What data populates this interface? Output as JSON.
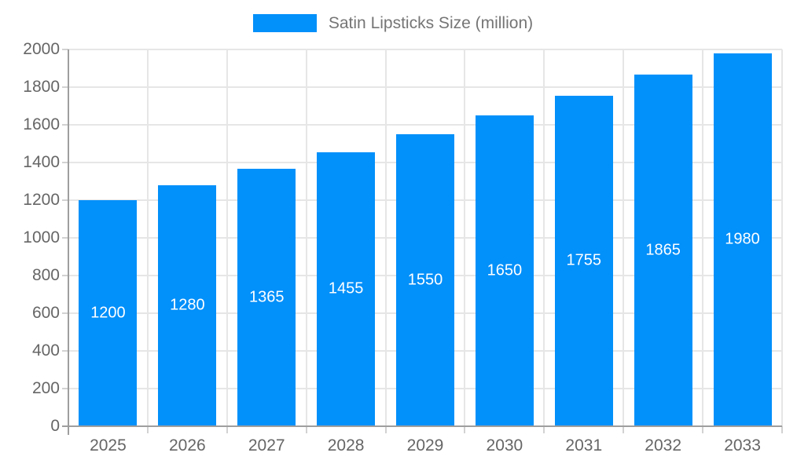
{
  "chart_data": {
    "type": "bar",
    "title": "Satin Lipsticks Size (million)",
    "categories": [
      "2025",
      "2026",
      "2027",
      "2028",
      "2029",
      "2030",
      "2031",
      "2032",
      "2033"
    ],
    "values": [
      1200,
      1280,
      1365,
      1455,
      1550,
      1650,
      1755,
      1865,
      1980
    ],
    "xlabel": "",
    "ylabel": "",
    "ylim": [
      0,
      2000
    ],
    "ytick_step": 200,
    "y_tick_labels": [
      "0",
      "200",
      "400",
      "600",
      "800",
      "1000",
      "1200",
      "1400",
      "1600",
      "1800",
      "2000"
    ],
    "grid": true,
    "legend_position": "top",
    "bar_label_position": "inside-center",
    "colors": {
      "bar": "#0290fa",
      "bar_label": "#ffffff",
      "grid": "#e6e6e6",
      "axis": "#9e9e9e",
      "tick": "#d2d2d2",
      "axis_label": "#666666",
      "legend_text": "#757575",
      "background": "#ffffff"
    }
  }
}
